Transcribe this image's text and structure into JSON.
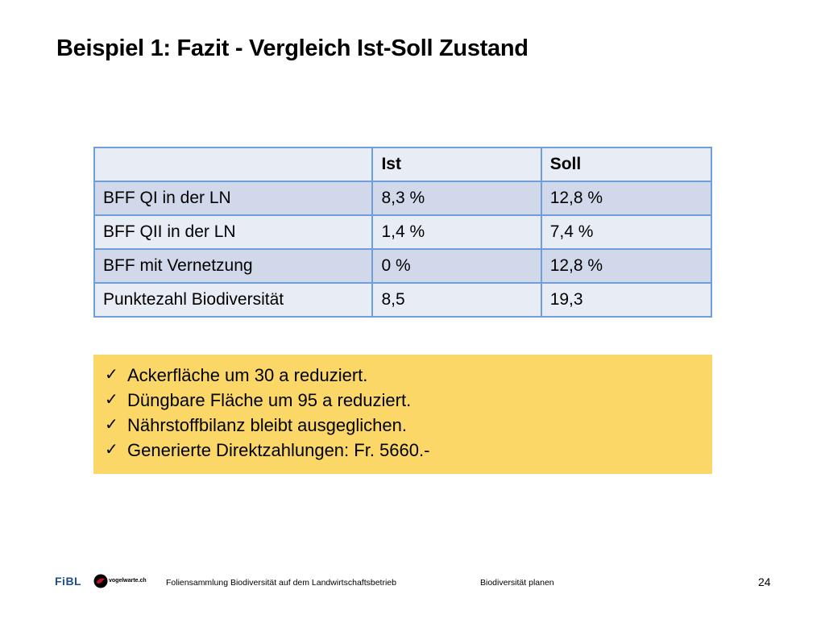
{
  "slide": {
    "title": "Beispiel 1: Fazit - Vergleich Ist-Soll Zustand"
  },
  "table": {
    "headers": [
      "",
      "Ist",
      "Soll"
    ],
    "rows": [
      [
        "BFF QI in der LN",
        "8,3 %",
        "12,8 %"
      ],
      [
        "BFF QII in der LN",
        "1,4 %",
        "7,4 %"
      ],
      [
        "BFF mit Vernetzung",
        "0 %",
        "12,8 %"
      ],
      [
        "Punktezahl Biodiversität",
        "8,5",
        "19,3"
      ]
    ]
  },
  "summary": {
    "items": [
      "Ackerfläche um 30 a reduziert.",
      "Düngbare Fläche um 95 a reduziert.",
      "Nährstoffbilanz bleibt ausgeglichen.",
      "Generierte Direktzahlungen: Fr. 5660.-"
    ],
    "bullet_icon": "checkmark-icon",
    "background_color": "#fad767"
  },
  "footer": {
    "logo_fibl": "FiBL",
    "logo_vogelwarte": "vogelwarte.ch",
    "collection": "Foliensammlung Biodiversität auf dem Landwirtschaftsbetrieb",
    "section": "Biodiversität planen",
    "page_number": "24"
  },
  "colors": {
    "table_border": "#6f9fd8",
    "row_dark": "#d0d8ea",
    "row_light": "#e8ecf5"
  }
}
